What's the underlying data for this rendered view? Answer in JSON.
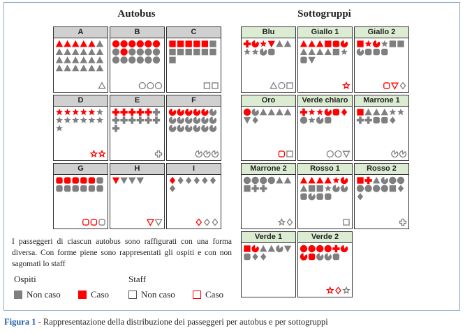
{
  "titles": {
    "autobus": "Autobus",
    "sottogruppi": "Sottogruppi"
  },
  "colors": {
    "red": "#ff0000",
    "gray": "#7f7f7f",
    "bus_header": "#d0d0d0",
    "sub_header": "#dcecd2"
  },
  "autobus": [
    {
      "label": "A",
      "ospiti": [
        {
          "shape": "triangle",
          "count": 5,
          "case": true
        },
        {
          "shape": "triangle",
          "count": 19,
          "case": false
        }
      ],
      "staff": [
        {
          "shape": "triangle",
          "count": 1,
          "case": false
        }
      ]
    },
    {
      "label": "B",
      "ospiti": [
        {
          "shape": "circle",
          "count": 6,
          "case": true
        },
        {
          "shape": "circle",
          "count": 1,
          "case": false
        },
        {
          "shape": "circle",
          "count": 1,
          "case": true
        },
        {
          "shape": "circle",
          "count": 10,
          "case": false
        }
      ],
      "staff": [
        {
          "shape": "circle",
          "count": 3,
          "case": false
        }
      ]
    },
    {
      "label": "C",
      "ospiti": [
        {
          "shape": "square",
          "count": 5,
          "case": true
        },
        {
          "shape": "square",
          "count": 8,
          "case": false
        }
      ],
      "staff": [
        {
          "shape": "square",
          "count": 2,
          "case": false
        }
      ]
    },
    {
      "label": "D",
      "ospiti": [
        {
          "shape": "star",
          "count": 5,
          "case": true
        },
        {
          "shape": "star",
          "count": 8,
          "case": false
        }
      ],
      "staff": [
        {
          "shape": "star",
          "count": 2,
          "case": true
        }
      ]
    },
    {
      "label": "E",
      "ospiti": [
        {
          "shape": "cross",
          "count": 5,
          "case": true
        },
        {
          "shape": "cross",
          "count": 8,
          "case": false
        }
      ],
      "staff": [
        {
          "shape": "cross",
          "count": 1,
          "case": false
        }
      ]
    },
    {
      "label": "F",
      "ospiti": [
        {
          "shape": "pacman",
          "count": 5,
          "case": true
        },
        {
          "shape": "pacman",
          "count": 13,
          "case": false
        }
      ],
      "staff": [
        {
          "shape": "pacman",
          "count": 3,
          "case": false
        }
      ]
    },
    {
      "label": "G",
      "ospiti": [
        {
          "shape": "roundsq",
          "count": 5,
          "case": true
        },
        {
          "shape": "roundsq",
          "count": 7,
          "case": false
        }
      ],
      "staff": [
        {
          "shape": "roundsq",
          "count": 2,
          "case": true
        },
        {
          "shape": "roundsq",
          "count": 1,
          "case": false
        }
      ]
    },
    {
      "label": "H",
      "ospiti": [
        {
          "shape": "invtriangle",
          "count": 1,
          "case": true
        },
        {
          "shape": "invtriangle",
          "count": 3,
          "case": false
        }
      ],
      "staff": [
        {
          "shape": "invtriangle",
          "count": 1,
          "case": true
        },
        {
          "shape": "invtriangle",
          "count": 1,
          "case": false
        }
      ]
    },
    {
      "label": "I",
      "ospiti": [
        {
          "shape": "diamond",
          "count": 1,
          "case": true
        },
        {
          "shape": "diamond",
          "count": 6,
          "case": false
        }
      ],
      "staff": [
        {
          "shape": "diamond",
          "count": 1,
          "case": true
        },
        {
          "shape": "diamond",
          "count": 2,
          "case": false
        }
      ]
    }
  ],
  "sottogruppi": [
    {
      "label": "Blu",
      "ospiti": [
        {
          "shape": "cross",
          "count": 1,
          "case": true
        },
        {
          "shape": "pacman",
          "count": 1,
          "case": true
        },
        {
          "shape": "star",
          "count": 1,
          "case": true
        },
        {
          "shape": "invtriangle",
          "count": 1,
          "case": true
        },
        {
          "shape": "triangle",
          "count": 2,
          "case": false
        },
        {
          "shape": "star",
          "count": 2,
          "case": false
        },
        {
          "shape": "pacman",
          "count": 1,
          "case": false
        },
        {
          "shape": "roundsq",
          "count": 1,
          "case": false
        }
      ],
      "staff": [
        {
          "shape": "triangle",
          "count": 1,
          "case": false
        },
        {
          "shape": "circle",
          "count": 1,
          "case": false
        },
        {
          "shape": "square",
          "count": 1,
          "case": false
        }
      ]
    },
    {
      "label": "Giallo 1",
      "ospiti": [
        {
          "shape": "triangle",
          "count": 3,
          "case": true
        },
        {
          "shape": "square",
          "count": 1,
          "case": true
        },
        {
          "shape": "roundsq",
          "count": 1,
          "case": true
        },
        {
          "shape": "pacman",
          "count": 1,
          "case": true
        },
        {
          "shape": "triangle",
          "count": 4,
          "case": false
        },
        {
          "shape": "square",
          "count": 1,
          "case": false
        },
        {
          "shape": "star",
          "count": 1,
          "case": false
        },
        {
          "shape": "roundsq",
          "count": 1,
          "case": false
        },
        {
          "shape": "invtriangle",
          "count": 1,
          "case": false
        }
      ],
      "staff": [
        {
          "shape": "star",
          "count": 1,
          "case": true
        }
      ]
    },
    {
      "label": "Giallo 2",
      "ospiti": [
        {
          "shape": "square",
          "count": 1,
          "case": true
        },
        {
          "shape": "star",
          "count": 1,
          "case": true
        },
        {
          "shape": "pacman",
          "count": 1,
          "case": true
        },
        {
          "shape": "star",
          "count": 1,
          "case": false
        },
        {
          "shape": "square",
          "count": 1,
          "case": false
        },
        {
          "shape": "square",
          "count": 1,
          "case": false
        },
        {
          "shape": "pacman",
          "count": 1,
          "case": false
        },
        {
          "shape": "roundsq",
          "count": 3,
          "case": false
        }
      ],
      "staff": [
        {
          "shape": "roundsq",
          "count": 1,
          "case": true
        },
        {
          "shape": "invtriangle",
          "count": 1,
          "case": true
        },
        {
          "shape": "diamond",
          "count": 1,
          "case": false
        }
      ]
    },
    {
      "label": "Oro",
      "ospiti": [
        {
          "shape": "circle",
          "count": 1,
          "case": true
        },
        {
          "shape": "pacman",
          "count": 1,
          "case": false
        },
        {
          "shape": "triangle",
          "count": 4,
          "case": false
        },
        {
          "shape": "invtriangle",
          "count": 1,
          "case": false
        },
        {
          "shape": "diamond",
          "count": 1,
          "case": false
        }
      ],
      "staff": [
        {
          "shape": "roundsq",
          "count": 1,
          "case": true
        },
        {
          "shape": "square",
          "count": 1,
          "case": false
        }
      ]
    },
    {
      "label": "Verde chiaro",
      "ospiti": [
        {
          "shape": "cross",
          "count": 1,
          "case": true
        },
        {
          "shape": "star",
          "count": 2,
          "case": true
        },
        {
          "shape": "pacman",
          "count": 1,
          "case": true
        },
        {
          "shape": "roundsq",
          "count": 1,
          "case": true
        },
        {
          "shape": "diamond",
          "count": 1,
          "case": true
        },
        {
          "shape": "circle",
          "count": 1,
          "case": false
        },
        {
          "shape": "star",
          "count": 1,
          "case": false
        },
        {
          "shape": "pacman",
          "count": 1,
          "case": false
        },
        {
          "shape": "roundsq",
          "count": 1,
          "case": false
        }
      ],
      "staff": [
        {
          "shape": "circle",
          "count": 2,
          "case": false
        },
        {
          "shape": "invtriangle",
          "count": 1,
          "case": false
        }
      ]
    },
    {
      "label": "Marrone 1",
      "ospiti": [
        {
          "shape": "square",
          "count": 1,
          "case": true
        },
        {
          "shape": "triangle",
          "count": 3,
          "case": false
        },
        {
          "shape": "star",
          "count": 2,
          "case": false
        },
        {
          "shape": "cross",
          "count": 2,
          "case": false
        },
        {
          "shape": "roundsq",
          "count": 2,
          "case": false
        },
        {
          "shape": "diamond",
          "count": 1,
          "case": false
        }
      ],
      "staff": [
        {
          "shape": "pacman",
          "count": 2,
          "case": false
        }
      ]
    },
    {
      "label": "Marrone 2",
      "ospiti": [
        {
          "shape": "circle",
          "count": 4,
          "case": false
        },
        {
          "shape": "triangle",
          "count": 2,
          "case": false
        },
        {
          "shape": "square",
          "count": 1,
          "case": false
        },
        {
          "shape": "cross",
          "count": 2,
          "case": false
        }
      ],
      "staff": [
        {
          "shape": "star",
          "count": 1,
          "case": false
        },
        {
          "shape": "diamond",
          "count": 1,
          "case": false
        }
      ]
    },
    {
      "label": "Rosso 1",
      "ospiti": [
        {
          "shape": "triangle",
          "count": 4,
          "case": true
        },
        {
          "shape": "star",
          "count": 1,
          "case": true
        },
        {
          "shape": "pacman",
          "count": 1,
          "case": true
        },
        {
          "shape": "triangle",
          "count": 1,
          "case": false
        },
        {
          "shape": "square",
          "count": 2,
          "case": false
        },
        {
          "shape": "star",
          "count": 1,
          "case": false
        },
        {
          "shape": "pacman",
          "count": 2,
          "case": false
        },
        {
          "shape": "roundsq",
          "count": 1,
          "case": false
        },
        {
          "shape": "pacman",
          "count": 1,
          "case": false
        },
        {
          "shape": "roundsq",
          "count": 2,
          "case": false
        }
      ],
      "staff": [
        {
          "shape": "square",
          "count": 1,
          "case": false
        }
      ]
    },
    {
      "label": "Rosso 2",
      "ospiti": [
        {
          "shape": "square",
          "count": 1,
          "case": true
        },
        {
          "shape": "cross",
          "count": 1,
          "case": true
        },
        {
          "shape": "triangle",
          "count": 1,
          "case": false
        },
        {
          "shape": "pacman",
          "count": 1,
          "case": false
        },
        {
          "shape": "circle",
          "count": 2,
          "case": false
        },
        {
          "shape": "circle",
          "count": 4,
          "case": false
        },
        {
          "shape": "square",
          "count": 1,
          "case": false
        },
        {
          "shape": "diamond",
          "count": 2,
          "case": false
        }
      ],
      "staff": [
        {
          "shape": "cross",
          "count": 1,
          "case": false
        }
      ]
    },
    {
      "label": "Verde 1",
      "ospiti": [
        {
          "shape": "square",
          "count": 1,
          "case": true
        },
        {
          "shape": "pacman",
          "count": 1,
          "case": true
        },
        {
          "shape": "triangle",
          "count": 2,
          "case": false
        },
        {
          "shape": "pacman",
          "count": 1,
          "case": false
        },
        {
          "shape": "invtriangle",
          "count": 1,
          "case": false
        },
        {
          "shape": "roundsq",
          "count": 1,
          "case": false
        },
        {
          "shape": "diamond",
          "count": 2,
          "case": false
        }
      ],
      "staff": []
    },
    {
      "label": "Verde 2",
      "ospiti": [
        {
          "shape": "circle",
          "count": 4,
          "case": true
        },
        {
          "shape": "cross",
          "count": 1,
          "case": true
        },
        {
          "shape": "pacman",
          "count": 2,
          "case": true
        },
        {
          "shape": "roundsq",
          "count": 1,
          "case": true
        },
        {
          "shape": "pacman",
          "count": 2,
          "case": false
        },
        {
          "shape": "roundsq",
          "count": 1,
          "case": false
        }
      ],
      "staff": [
        {
          "shape": "star",
          "count": 1,
          "case": true
        },
        {
          "shape": "diamond",
          "count": 1,
          "case": true
        },
        {
          "shape": "star",
          "count": 1,
          "case": false
        }
      ]
    }
  ],
  "note": "I passeggeri di ciascun autobus sono raffigurati con una forma diversa. Con forme piene sono rappresentati gli ospiti e con non sagomati lo staff",
  "legend": {
    "ospiti_title": "Ospiti",
    "staff_title": "Staff",
    "non_caso": "Non caso",
    "caso": "Caso"
  },
  "caption": {
    "label": "Figura 1",
    "text": " - Rappresentazione della distribuzione dei passeggeri per autobus e per sottogruppi"
  }
}
